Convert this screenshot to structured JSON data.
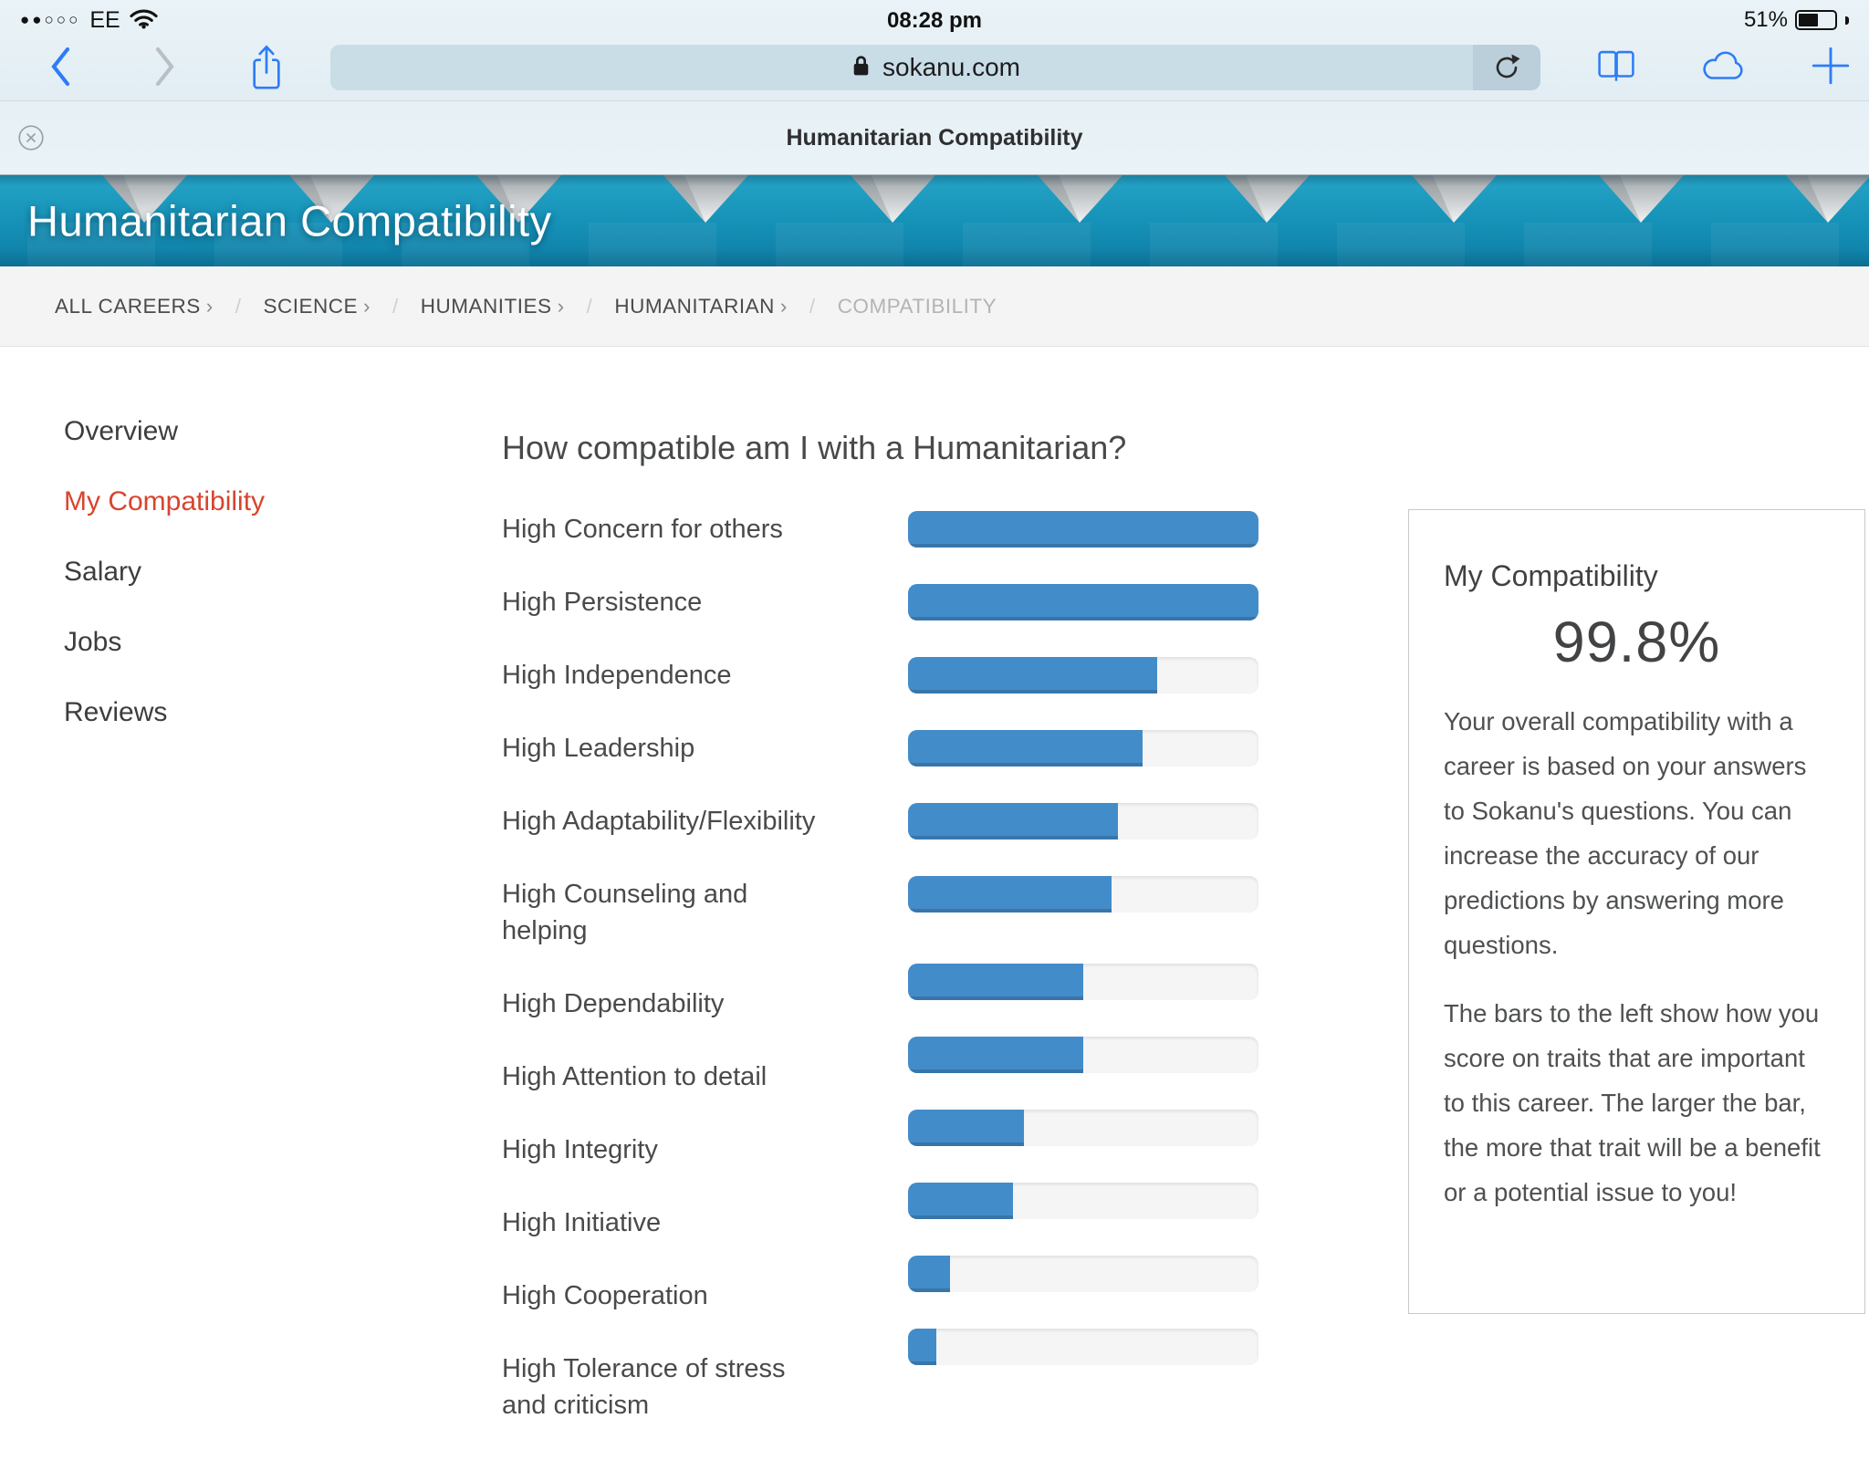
{
  "status_bar": {
    "signal_dots": "●●○○○",
    "carrier": "EE",
    "time": "08:28 pm",
    "battery_percent": "51%"
  },
  "browser": {
    "url": "sokanu.com",
    "tab_title": "Humanitarian Compatibility"
  },
  "hero": {
    "title": "Humanitarian Compatibility"
  },
  "breadcrumb": {
    "items": [
      {
        "label": "ALL CAREERS"
      },
      {
        "label": "SCIENCE"
      },
      {
        "label": "HUMANITIES"
      },
      {
        "label": "HUMANITARIAN"
      }
    ],
    "link_arrow": "›",
    "separator": "/",
    "current": "COMPATIBILITY"
  },
  "sidebar": {
    "items": [
      {
        "label": "Overview",
        "active": false
      },
      {
        "label": "My Compatibility",
        "active": true
      },
      {
        "label": "Salary",
        "active": false
      },
      {
        "label": "Jobs",
        "active": false
      },
      {
        "label": "Reviews",
        "active": false
      }
    ]
  },
  "main": {
    "heading": "How compatible am I with a Humanitarian?"
  },
  "chart_data": {
    "type": "bar",
    "orientation": "horizontal",
    "title": "How compatible am I with a Humanitarian?",
    "categories": [
      "High Concern for others",
      "High Persistence",
      "High Independence",
      "High Leadership",
      "High Adaptability/Flexibility",
      "High Counseling and helping",
      "High Dependability",
      "High Attention to detail",
      "High Integrity",
      "High Initiative",
      "High Cooperation",
      "High Tolerance of stress and criticism"
    ],
    "values": [
      100,
      100,
      71,
      67,
      60,
      58,
      50,
      50,
      33,
      30,
      12,
      8
    ],
    "value_unit": "percent",
    "xlim": [
      0,
      100
    ],
    "grid": false,
    "legend": false,
    "bar_color": "#438cca",
    "track_color": "#f5f5f6"
  },
  "card": {
    "title": "My Compatibility",
    "score": "99.8%",
    "paragraphs": [
      "Your overall compatibility with a career is based on your answers to Sokanu's questions. You can increase the accuracy of our predictions by answering more questions.",
      "The bars to the left show how you score on traits that are important to this career. The larger the bar, the more that trait will be a benefit or a potential issue to you!"
    ]
  },
  "colors": {
    "accent_blue": "#2e7cf6",
    "inactive_gray": "#b9c0c5",
    "bar_fill": "#438cca",
    "bar_track": "#f5f5f6",
    "active_nav": "#d8442e",
    "hero_teal": "#1697bf",
    "chrome_bg": "#e2eef4"
  }
}
